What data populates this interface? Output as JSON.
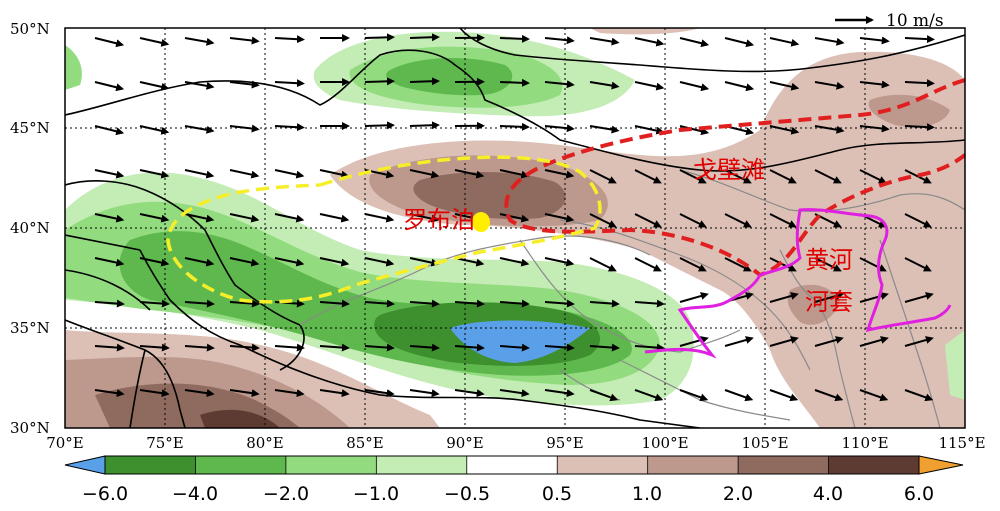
{
  "map": {
    "lon_range": [
      70,
      115
    ],
    "lat_range": [
      30,
      50
    ],
    "lon_ticks": [
      "70°E",
      "75°E",
      "80°E",
      "85°E",
      "90°E",
      "95°E",
      "100°E",
      "105°E",
      "110°E",
      "115°E"
    ],
    "lat_ticks": [
      "30°N",
      "35°N",
      "40°N",
      "45°N",
      "50°N"
    ],
    "grid": "dotted",
    "vector_reference": {
      "label": "10 m/s",
      "placement": "top-right"
    },
    "annotations": [
      {
        "text": "罗布泊",
        "lon": 87.5,
        "lat": 40.4,
        "color": "#e00000"
      },
      {
        "text": "戈壁滩",
        "lon": 102,
        "lat": 42.9,
        "color": "#e00000"
      },
      {
        "text": "黄河",
        "lon": 107.6,
        "lat": 38.4,
        "color": "#e00000"
      },
      {
        "text": "河套",
        "lon": 107.6,
        "lat": 36.3,
        "color": "#e00000"
      }
    ],
    "marker": {
      "name": "罗布泊",
      "lon": 90.8,
      "lat": 40.3,
      "color": "#ffee00"
    },
    "colorbar": {
      "tick_labels": [
        "−6.0",
        "−4.0",
        "−2.0",
        "−1.0",
        "−0.5",
        "0.5",
        "1.0",
        "2.0",
        "4.0",
        "6.0"
      ],
      "levels": [
        -6.0,
        -4.0,
        -2.0,
        -1.0,
        -0.5,
        0.5,
        1.0,
        2.0,
        4.0,
        6.0
      ],
      "colors": [
        "#3e8f2e",
        "#5eb84d",
        "#92dc7f",
        "#c4ecb5",
        "#ffffff",
        "#dcc0b6",
        "#bd988c",
        "#8f6a5f",
        "#5e3b32"
      ],
      "under_color": "#5aa0e8",
      "over_color": "#f0a030"
    },
    "line_colors": {
      "gobi_outline": "#e02020",
      "lop_nur_outline": "#f7ee2a",
      "yellow_river": "#e020e0",
      "borders_outer": "#000000",
      "borders_inner": "#8a8a8a"
    }
  }
}
